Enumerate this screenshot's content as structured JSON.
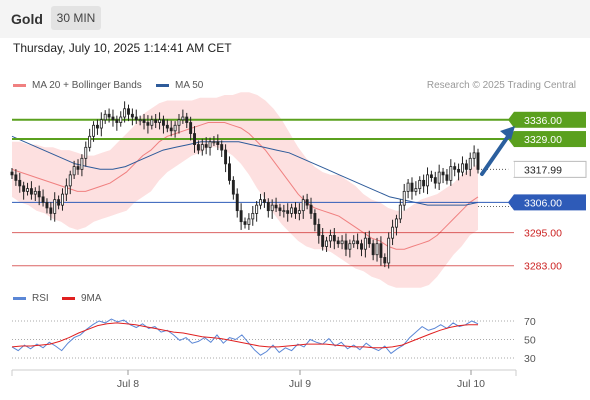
{
  "header": {
    "title": "Gold",
    "timeframe": "30 MIN"
  },
  "datetime": "Thursday, July 10, 2025 1:14:41 AM CET",
  "credit": "Research © 2025 Trading Central",
  "legend_main": [
    {
      "label": "MA 20 + Bollinger Bands",
      "color": "#f08080"
    },
    {
      "label": "MA 50",
      "color": "#2e5b9a"
    }
  ],
  "legend_rsi": [
    {
      "label": "RSI",
      "color": "#5b87d6"
    },
    {
      "label": "9MA",
      "color": "#e02020"
    }
  ],
  "colors": {
    "resistance": "#5aa01e",
    "current": "#3a3a3a",
    "pivot": "#2e5bb8",
    "support": "#cc2222",
    "candle": "#222222",
    "bb_fill": "#fde0e0",
    "arrow": "#2b5f9e"
  },
  "chart_data": {
    "type": "candlestick",
    "instrument": "Gold",
    "timeframe": "30 MIN",
    "x_labels": [
      "Jul 8",
      "Jul 9",
      "Jul 10"
    ],
    "ylim": [
      3276,
      3345
    ],
    "levels": [
      {
        "value": 3336.0,
        "label": "3336.00",
        "kind": "resistance"
      },
      {
        "value": 3329.0,
        "label": "3329.00",
        "kind": "resistance"
      },
      {
        "value": 3317.99,
        "label": "3317.99",
        "kind": "current"
      },
      {
        "value": 3306.0,
        "label": "3306.00",
        "kind": "pivot"
      },
      {
        "value": 3295.0,
        "label": "3295.00",
        "kind": "support"
      },
      {
        "value": 3283.0,
        "label": "3283.00",
        "kind": "support"
      }
    ],
    "close": [
      3316,
      3314,
      3312,
      3310,
      3311,
      3309,
      3310,
      3308,
      3306,
      3304,
      3302,
      3307,
      3305,
      3309,
      3312,
      3316,
      3319,
      3318,
      3322,
      3326,
      3330,
      3334,
      3333,
      3336,
      3338,
      3337,
      3336,
      3335,
      3337,
      3340,
      3338,
      3337,
      3336,
      3336,
      3335,
      3334,
      3336,
      3335,
      3336,
      3334,
      3333,
      3332,
      3334,
      3336,
      3337,
      3335,
      3331,
      3327,
      3325,
      3327,
      3326,
      3328,
      3328,
      3327,
      3325,
      3320,
      3314,
      3309,
      3303,
      3299,
      3298,
      3300,
      3302,
      3305,
      3307,
      3306,
      3303,
      3305,
      3304,
      3303,
      3303,
      3302,
      3304,
      3302,
      3303,
      3307,
      3305,
      3302,
      3298,
      3294,
      3290,
      3292,
      3294,
      3292,
      3291,
      3292,
      3289,
      3291,
      3292,
      3291,
      3289,
      3293,
      3291,
      3287,
      3291,
      3286,
      3284,
      3293,
      3297,
      3300,
      3305,
      3310,
      3313,
      3310,
      3311,
      3314,
      3312,
      3316,
      3315,
      3313,
      3317,
      3316,
      3314,
      3319,
      3318,
      3317,
      3320,
      3318,
      3322,
      3324,
      3318
    ],
    "ma20": [
      3318,
      3317,
      3316,
      3315,
      3314,
      3313,
      3312,
      3311,
      3310,
      3310,
      3311,
      3312,
      3313,
      3315,
      3317,
      3320,
      3323,
      3325,
      3328,
      3330,
      3331,
      3332,
      3333,
      3334,
      3335,
      3335,
      3335,
      3334,
      3333,
      3331,
      3328,
      3325,
      3321,
      3317,
      3313,
      3309,
      3306,
      3304,
      3303,
      3302,
      3301,
      3299,
      3297,
      3295,
      3293,
      3292,
      3290,
      3289,
      3289,
      3290,
      3291,
      3292,
      3294,
      3297,
      3300,
      3303,
      3306,
      3308
    ],
    "ma50": [
      3330,
      3328,
      3326,
      3324,
      3322,
      3320,
      3319,
      3318,
      3318,
      3319,
      3321,
      3323,
      3325,
      3326,
      3327,
      3328,
      3328,
      3328,
      3328,
      3327,
      3326,
      3325,
      3324,
      3322,
      3320,
      3318,
      3316,
      3314,
      3312,
      3310,
      3308,
      3307,
      3306,
      3305,
      3305,
      3305,
      3305,
      3306
    ],
    "rsi_levels": [
      70,
      50,
      30
    ],
    "rsi": [
      42,
      38,
      44,
      40,
      45,
      41,
      47,
      43,
      38,
      46,
      52,
      55,
      61,
      66,
      70,
      68,
      72,
      69,
      71,
      66,
      63,
      67,
      62,
      64,
      58,
      60,
      55,
      49,
      52,
      46,
      48,
      52,
      47,
      55,
      46,
      52,
      50,
      55,
      47,
      39,
      33,
      37,
      44,
      36,
      41,
      38,
      45,
      42,
      50,
      47,
      45,
      51,
      43,
      47,
      40,
      44,
      39,
      46,
      41,
      38,
      43,
      35,
      40,
      44,
      52,
      58,
      64,
      60,
      62,
      66,
      62,
      68,
      64,
      66,
      70,
      67
    ],
    "rsi_ma": [
      42,
      43,
      43,
      44,
      45,
      48,
      52,
      57,
      61,
      65,
      67,
      68,
      67,
      66,
      64,
      62,
      60,
      58,
      57,
      55,
      53,
      52,
      51,
      49,
      47,
      45,
      43,
      42,
      42,
      43,
      44,
      45,
      45,
      45,
      44,
      43,
      42,
      42,
      41,
      41,
      42,
      44,
      48,
      52,
      56,
      60,
      63,
      65,
      66,
      66
    ]
  }
}
